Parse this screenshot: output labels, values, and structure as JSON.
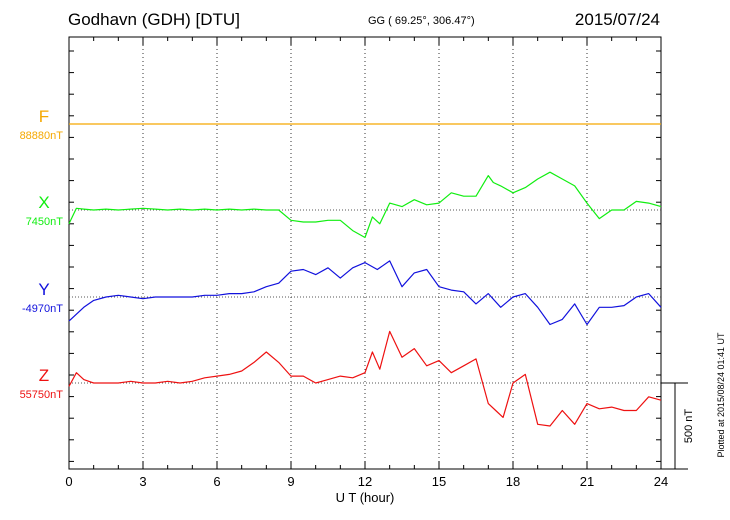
{
  "header": {
    "station": "Godhavn (GDH)  [DTU]",
    "coords": "GG ( 69.25°, 306.47°)",
    "date": "2015/07/24",
    "plotted": "Plotted at 2015/08/24 01:41 UT"
  },
  "colors": {
    "F": "#f5a800",
    "X": "#11ee11",
    "Y": "#1111dd",
    "Z": "#ee1111"
  },
  "chart_data": {
    "type": "line",
    "xlabel": "U T (hour)",
    "xlim": [
      0,
      24
    ],
    "xticks": [
      "0",
      "3",
      "6",
      "9",
      "12",
      "15",
      "18",
      "21",
      "24"
    ],
    "scale_bar": "500 nT",
    "series": [
      {
        "name": "F",
        "baseline_label": "88880nT",
        "x": [
          0,
          24
        ],
        "y": [
          0,
          0
        ]
      },
      {
        "name": "X",
        "baseline_label": "7450nT",
        "x": [
          0,
          0.3,
          0.6,
          1,
          1.5,
          2,
          2.5,
          3,
          3.5,
          4,
          4.5,
          5,
          5.5,
          6,
          6.5,
          7,
          7.5,
          8,
          8.5,
          9,
          9.5,
          10,
          10.5,
          11,
          11.5,
          12,
          12.3,
          12.6,
          13,
          13.5,
          14,
          14.5,
          15,
          15.5,
          16,
          16.5,
          17,
          17.2,
          17.5,
          18,
          18.5,
          19,
          19.5,
          20,
          20.5,
          21,
          21.5,
          22,
          22.5,
          23,
          23.5,
          24
        ],
        "y": [
          -80,
          10,
          5,
          0,
          5,
          0,
          5,
          10,
          5,
          0,
          5,
          0,
          5,
          0,
          5,
          0,
          5,
          0,
          0,
          -60,
          -70,
          -70,
          -60,
          -60,
          -120,
          -160,
          -40,
          -80,
          40,
          20,
          60,
          30,
          40,
          100,
          80,
          80,
          200,
          160,
          140,
          100,
          130,
          180,
          220,
          180,
          140,
          40,
          -50,
          0,
          0,
          50,
          40,
          20
        ]
      },
      {
        "name": "Y",
        "baseline_label": "-4970nT",
        "x": [
          0,
          0.3,
          0.6,
          1,
          1.5,
          2,
          2.5,
          3,
          3.5,
          4,
          4.5,
          5,
          5.5,
          6,
          6.5,
          7,
          7.5,
          8,
          8.5,
          9,
          9.5,
          10,
          10.5,
          11,
          11.5,
          12,
          12.5,
          13,
          13.5,
          14,
          14.5,
          15,
          15.5,
          16,
          16.5,
          17,
          17.5,
          18,
          18.5,
          19,
          19.5,
          20,
          20.5,
          21,
          21.5,
          22,
          22.5,
          23,
          23.5,
          24
        ],
        "y": [
          -140,
          -100,
          -60,
          -20,
          0,
          10,
          0,
          -10,
          0,
          0,
          0,
          0,
          10,
          10,
          20,
          20,
          30,
          60,
          80,
          150,
          160,
          130,
          170,
          110,
          170,
          200,
          160,
          210,
          60,
          140,
          160,
          60,
          40,
          30,
          -40,
          20,
          -60,
          0,
          20,
          -60,
          -160,
          -130,
          -40,
          -160,
          -60,
          -60,
          -50,
          0,
          20,
          -60
        ]
      },
      {
        "name": "Z",
        "baseline_label": "55750nT",
        "x": [
          0,
          0.3,
          0.6,
          1,
          1.5,
          2,
          2.5,
          3,
          3.5,
          4,
          4.5,
          5,
          5.5,
          6,
          6.5,
          7,
          7.5,
          8,
          8.5,
          9,
          9.5,
          10,
          10.5,
          11,
          11.5,
          12,
          12.3,
          12.6,
          13,
          13.5,
          14,
          14.5,
          15,
          15.5,
          16,
          16.5,
          17,
          17.3,
          17.6,
          18,
          18.5,
          19,
          19.5,
          20,
          20.5,
          21,
          21.5,
          22,
          22.5,
          23,
          23.5,
          24
        ],
        "y": [
          -20,
          60,
          20,
          0,
          0,
          0,
          10,
          0,
          0,
          10,
          0,
          10,
          30,
          40,
          50,
          70,
          120,
          180,
          120,
          40,
          40,
          0,
          20,
          40,
          30,
          60,
          180,
          80,
          300,
          150,
          200,
          100,
          130,
          60,
          100,
          140,
          -120,
          -160,
          -200,
          0,
          50,
          -240,
          -250,
          -160,
          -240,
          -120,
          -150,
          -140,
          -160,
          -160,
          -80,
          -100
        ]
      }
    ]
  }
}
